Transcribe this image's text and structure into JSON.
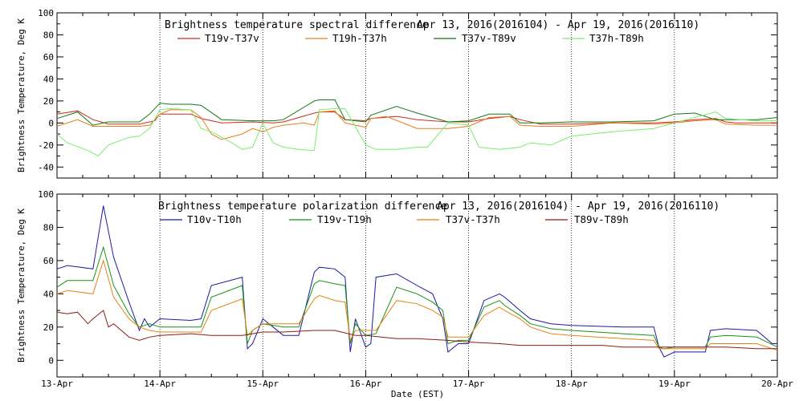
{
  "chart_data": [
    {
      "type": "line",
      "title": "Brightness temperature spectral difference",
      "date_range": "Apr 13, 2016(2016104) - Apr 19, 2016(2016110)",
      "ylabel": "Brightness Temperature, Deg K",
      "ylim": [
        -50,
        100
      ],
      "yticks": [
        -40,
        -20,
        0,
        20,
        40,
        60,
        80,
        100
      ],
      "xlim": [
        0,
        7
      ],
      "series": [
        {
          "name": "T19v-T37v",
          "color": "#cc2a1e",
          "x": [
            0,
            0.2,
            0.35,
            0.5,
            0.8,
            0.95,
            1.0,
            1.3,
            1.4,
            1.6,
            1.9,
            2.1,
            2.2,
            2.5,
            2.55,
            2.7,
            2.8,
            3.0,
            3.05,
            3.3,
            3.5,
            3.8,
            4.0,
            4.2,
            4.4,
            4.5,
            4.7,
            5.0,
            5.4,
            5.8,
            6.0,
            6.2,
            6.4,
            6.5,
            6.6,
            6.8,
            7.0
          ],
          "y": [
            8,
            11,
            3,
            -1,
            -1,
            2,
            8,
            8,
            4,
            0,
            1,
            0,
            1,
            9,
            10,
            10,
            3,
            2,
            4,
            6,
            3,
            1,
            1,
            4,
            6,
            3,
            -1,
            -1,
            0,
            0,
            1,
            3,
            4,
            1,
            0,
            0,
            0
          ]
        },
        {
          "name": "T19h-T37h",
          "color": "#e67e1a",
          "x": [
            0,
            0.2,
            0.35,
            0.5,
            0.7,
            0.8,
            0.9,
            1.0,
            1.1,
            1.3,
            1.4,
            1.5,
            1.6,
            1.8,
            1.9,
            2.0,
            2.1,
            2.2,
            2.4,
            2.5,
            2.55,
            2.7,
            2.8,
            3.0,
            3.05,
            3.2,
            3.5,
            3.8,
            4.0,
            4.2,
            4.4,
            4.5,
            4.7,
            5.0,
            5.4,
            5.8,
            6.0,
            6.2,
            6.4,
            6.5,
            6.8,
            7.0
          ],
          "y": [
            -3,
            3,
            -3,
            -3,
            -3,
            -3,
            -2,
            8,
            12,
            12,
            5,
            -10,
            -15,
            -10,
            -5,
            -8,
            -4,
            -2,
            0,
            -2,
            10,
            11,
            0,
            -4,
            4,
            6,
            -5,
            -5,
            -3,
            5,
            6,
            -2,
            -3,
            -3,
            0,
            -1,
            0,
            2,
            3,
            -1,
            -2,
            -2
          ]
        },
        {
          "name": "T37v-T89v",
          "color": "#137a13",
          "x": [
            0,
            0.2,
            0.35,
            0.5,
            0.8,
            0.9,
            1.0,
            1.1,
            1.3,
            1.4,
            1.6,
            1.9,
            2.1,
            2.2,
            2.5,
            2.55,
            2.7,
            2.8,
            3.0,
            3.05,
            3.3,
            3.5,
            3.8,
            4.0,
            4.2,
            4.4,
            4.5,
            4.7,
            5.0,
            5.4,
            5.8,
            6.0,
            6.2,
            6.4,
            6.5,
            6.8,
            7.0
          ],
          "y": [
            4,
            10,
            -2,
            1,
            1,
            8,
            18,
            17,
            17,
            16,
            3,
            2,
            2,
            3,
            20,
            21,
            21,
            3,
            1,
            7,
            15,
            9,
            1,
            2,
            8,
            8,
            0,
            0,
            1,
            1,
            2,
            8,
            9,
            3,
            3,
            3,
            5
          ]
        },
        {
          "name": "T37h-T89h",
          "color": "#7aec6e",
          "x": [
            0,
            0.1,
            0.3,
            0.4,
            0.5,
            0.7,
            0.8,
            0.9,
            1.0,
            1.1,
            1.3,
            1.4,
            1.5,
            1.6,
            1.7,
            1.8,
            1.9,
            2.0,
            2.1,
            2.2,
            2.35,
            2.5,
            2.55,
            2.7,
            2.8,
            3.0,
            3.1,
            3.3,
            3.5,
            3.6,
            3.8,
            4.0,
            4.1,
            4.3,
            4.5,
            4.6,
            4.8,
            5.0,
            5.4,
            5.8,
            6.0,
            6.2,
            6.4,
            6.5,
            6.8,
            7.0
          ],
          "y": [
            -10,
            -18,
            -25,
            -30,
            -20,
            -13,
            -12,
            -5,
            12,
            13,
            12,
            -5,
            -8,
            -13,
            -18,
            -24,
            -22,
            0,
            -18,
            -22,
            -24,
            -25,
            12,
            13,
            13,
            -20,
            -24,
            -24,
            -22,
            -22,
            0,
            -2,
            -22,
            -24,
            -22,
            -18,
            -20,
            -12,
            -8,
            -5,
            0,
            5,
            10,
            4,
            2,
            2
          ]
        }
      ]
    },
    {
      "type": "line",
      "title": "Brightness temperature polarization difference",
      "date_range": "Apr 13, 2016(2016104) - Apr 19, 2016(2016110)",
      "xlabel": "Date (EST)",
      "ylabel": "Brightness Temperature, Deg K",
      "ylim": [
        -10,
        100
      ],
      "yticks": [
        0,
        20,
        40,
        60,
        80,
        100
      ],
      "xlim": [
        0,
        7
      ],
      "categories": [
        "13-Apr",
        "14-Apr",
        "15-Apr",
        "16-Apr",
        "17-Apr",
        "18-Apr",
        "19-Apr",
        "20-Apr"
      ],
      "series": [
        {
          "name": "T10v-T10h",
          "color": "#1a1aa6",
          "x": [
            0,
            0.1,
            0.35,
            0.45,
            0.55,
            0.7,
            0.8,
            0.85,
            0.9,
            1.0,
            1.3,
            1.4,
            1.5,
            1.8,
            1.85,
            1.9,
            2.0,
            2.1,
            2.2,
            2.35,
            2.5,
            2.55,
            2.7,
            2.8,
            2.85,
            2.9,
            3.0,
            3.05,
            3.1,
            3.3,
            3.5,
            3.65,
            3.75,
            3.8,
            3.9,
            4.0,
            4.15,
            4.3,
            4.35,
            4.5,
            4.6,
            4.8,
            5.0,
            5.5,
            5.8,
            5.85,
            5.9,
            6.0,
            6.3,
            6.35,
            6.5,
            6.8,
            6.95,
            7.0
          ],
          "y": [
            55,
            57,
            55,
            93,
            62,
            35,
            18,
            25,
            20,
            25,
            24,
            25,
            45,
            50,
            7,
            10,
            25,
            20,
            15,
            15,
            53,
            56,
            55,
            50,
            5,
            25,
            8,
            10,
            50,
            52,
            45,
            40,
            25,
            5,
            10,
            10,
            36,
            40,
            38,
            30,
            25,
            22,
            21,
            20,
            20,
            8,
            2,
            5,
            5,
            18,
            19,
            18,
            10,
            10
          ]
        },
        {
          "name": "T19v-T19h",
          "color": "#18931a",
          "x": [
            0,
            0.1,
            0.35,
            0.45,
            0.55,
            0.7,
            0.8,
            0.9,
            1.0,
            1.3,
            1.4,
            1.5,
            1.8,
            1.85,
            1.9,
            2.0,
            2.2,
            2.35,
            2.5,
            2.55,
            2.7,
            2.8,
            2.85,
            2.9,
            3.0,
            3.1,
            3.3,
            3.5,
            3.65,
            3.75,
            3.8,
            3.9,
            4.0,
            4.15,
            4.3,
            4.35,
            4.5,
            4.6,
            4.8,
            5.0,
            5.5,
            5.8,
            5.85,
            5.9,
            6.0,
            6.3,
            6.35,
            6.5,
            6.8,
            7.0
          ],
          "y": [
            44,
            48,
            48,
            68,
            45,
            28,
            20,
            22,
            20,
            20,
            20,
            38,
            45,
            10,
            18,
            22,
            20,
            20,
            46,
            48,
            46,
            45,
            10,
            22,
            15,
            16,
            44,
            40,
            35,
            30,
            10,
            12,
            12,
            32,
            36,
            33,
            27,
            22,
            19,
            18,
            16,
            15,
            8,
            7,
            8,
            8,
            14,
            15,
            14,
            8
          ]
        },
        {
          "name": "T37v-T37h",
          "color": "#e58412",
          "x": [
            0,
            0.1,
            0.35,
            0.45,
            0.55,
            0.7,
            0.8,
            0.9,
            1.0,
            1.3,
            1.4,
            1.5,
            1.8,
            1.85,
            1.9,
            2.0,
            2.2,
            2.35,
            2.5,
            2.55,
            2.7,
            2.8,
            2.85,
            2.9,
            3.0,
            3.1,
            3.3,
            3.5,
            3.65,
            3.75,
            3.8,
            3.9,
            4.0,
            4.15,
            4.3,
            4.35,
            4.5,
            4.6,
            4.8,
            5.0,
            5.5,
            5.8,
            5.85,
            5.9,
            6.0,
            6.3,
            6.35,
            6.5,
            6.8,
            7.0
          ],
          "y": [
            40,
            42,
            40,
            60,
            38,
            25,
            20,
            18,
            17,
            17,
            17,
            30,
            37,
            15,
            18,
            22,
            22,
            22,
            37,
            39,
            36,
            35,
            12,
            18,
            18,
            18,
            36,
            34,
            30,
            26,
            14,
            14,
            14,
            27,
            32,
            30,
            25,
            20,
            16,
            15,
            13,
            12,
            7,
            7,
            7,
            7,
            10,
            10,
            10,
            6
          ]
        },
        {
          "name": "T89v-T89h",
          "color": "#8e1b14",
          "x": [
            0,
            0.1,
            0.2,
            0.3,
            0.35,
            0.45,
            0.5,
            0.55,
            0.7,
            0.8,
            0.9,
            1.0,
            1.3,
            1.5,
            1.8,
            1.9,
            2.0,
            2.2,
            2.5,
            2.7,
            2.9,
            3.0,
            3.3,
            3.5,
            3.8,
            4.0,
            4.3,
            4.5,
            4.8,
            5.0,
            5.3,
            5.5,
            5.8,
            6.0,
            6.3,
            6.5,
            6.8,
            7.0
          ],
          "y": [
            29,
            28,
            29,
            22,
            25,
            30,
            20,
            22,
            14,
            12,
            14,
            15,
            16,
            15,
            15,
            16,
            17,
            17,
            18,
            18,
            15,
            15,
            13,
            13,
            12,
            11,
            10,
            9,
            9,
            9,
            9,
            8,
            8,
            8,
            8,
            8,
            7,
            7
          ]
        }
      ]
    }
  ]
}
